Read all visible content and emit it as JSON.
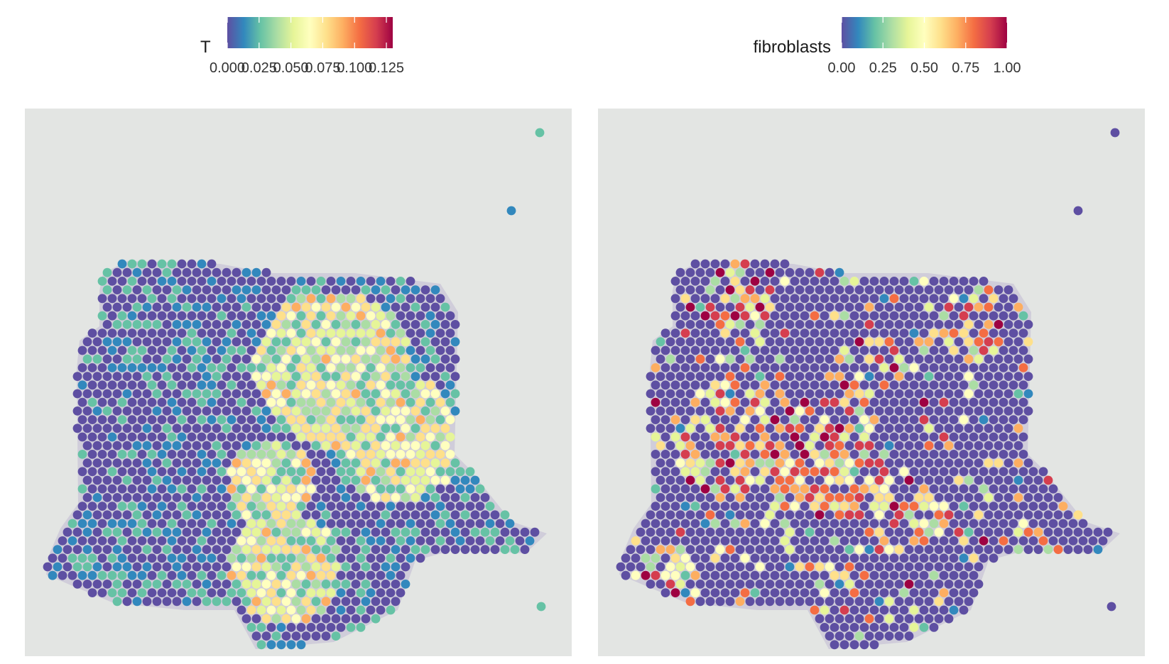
{
  "chart_data": [
    {
      "type": "heatmap",
      "plot": "spatial spot map over tissue image",
      "fill_label": "T",
      "colorbar": {
        "palette": "Spectral (reversed)",
        "range": [
          0,
          0.13
        ],
        "ticks": [
          "0.000",
          "0.025",
          "0.050",
          "0.075",
          "0.100",
          "0.125"
        ]
      },
      "axes": "none",
      "background": "H&E tissue image, light grey"
    },
    {
      "type": "heatmap",
      "plot": "spatial spot map over tissue image",
      "fill_label": "fibroblasts",
      "colorbar": {
        "palette": "Spectral (reversed)",
        "range": [
          0,
          1
        ],
        "ticks": [
          "0.00",
          "0.25",
          "0.50",
          "0.75",
          "1.00"
        ]
      },
      "axes": "none",
      "background": "H&E tissue image, light grey"
    }
  ],
  "palette_colors": [
    "#5e4fa2",
    "#3288bd",
    "#66c2a5",
    "#abdda4",
    "#e6f598",
    "#ffffbf",
    "#fee08b",
    "#fdae61",
    "#f46d43",
    "#d53e4f",
    "#9e0142"
  ],
  "background_color": "#e3e5e3"
}
